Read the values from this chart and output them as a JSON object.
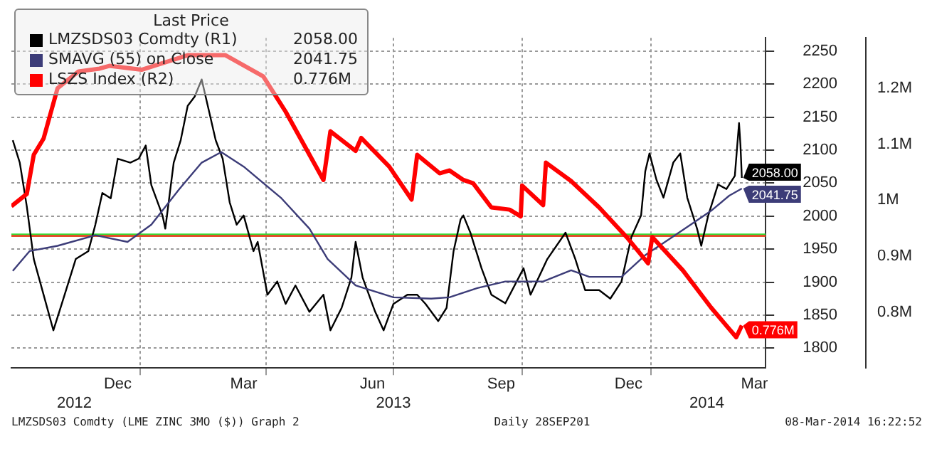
{
  "chart_data": {
    "type": "line",
    "legend_title": "Last Price",
    "legend": "top left",
    "grid": true,
    "marker": "none",
    "xlim": [
      "2012-10-01",
      "2014-03-24"
    ],
    "xticks": [
      {
        "value": "2012-12-16",
        "label": "Dec"
      },
      {
        "value": "2013-01-01",
        "label": null
      },
      {
        "value": "2013-03-16",
        "label": "Mar"
      },
      {
        "value": "2013-04-01",
        "label": null
      },
      {
        "value": "2013-06-16",
        "label": "Jun"
      },
      {
        "value": "2013-07-01",
        "label": null
      },
      {
        "value": "2013-09-16",
        "label": "Sep"
      },
      {
        "value": "2013-10-01",
        "label": null
      },
      {
        "value": "2013-12-16",
        "label": "Dec"
      },
      {
        "value": "2014-01-01",
        "label": null
      },
      {
        "value": "2014-03-16",
        "label": "Mar"
      }
    ],
    "x2lim": [
      "2012-10-01",
      "2014-03-24"
    ],
    "x2ticks": [
      {
        "value": "2012-11-15",
        "label": "2012"
      },
      {
        "value": "2013-07-01",
        "label": "2013"
      },
      {
        "value": "2014-02-10",
        "label": "2014"
      }
    ],
    "ylim": [
      1770,
      2270
    ],
    "yticks": [
      1800,
      1850,
      1900,
      1950,
      2000,
      2050,
      2100,
      2150,
      2200,
      2250
    ],
    "y2lim": [
      0.7,
      1.29
    ],
    "y2ticks": [
      {
        "value": 0.8,
        "label": "0.8M"
      },
      {
        "value": 0.9,
        "label": "0.9M"
      },
      {
        "value": 1,
        "label": "1M"
      },
      {
        "value": 1.1,
        "label": "1.1M"
      },
      {
        "value": 1.2,
        "label": "1.2M"
      }
    ],
    "ref_lines": [
      {
        "axis": "y",
        "value": 1972,
        "color": "#33dd33"
      },
      {
        "axis": "y",
        "value": 1970,
        "color": "#e0502a"
      }
    ],
    "annotations": [
      "LMZSDS03 Comdty (LME ZINC 3MO ($)) Graph 2",
      "Daily 28SEP201",
      "08-Mar-2014 16:22:52"
    ],
    "series": [
      {
        "name": "LSZS Index (R2)",
        "color": "#ff0000",
        "axis": "y2",
        "x": [
          "2012-10-01",
          "2012-10-12",
          "2012-10-17",
          "2012-10-24",
          "2012-11-03",
          "2012-11-18",
          "2012-12-03",
          "2012-12-10",
          "2013-01-02",
          "2013-02-04",
          "2013-03-03",
          "2013-03-30",
          "2013-04-15",
          "2013-05-12",
          "2013-05-17",
          "2013-06-04",
          "2013-06-08",
          "2013-06-28",
          "2013-07-14",
          "2013-07-18",
          "2013-08-03",
          "2013-08-10",
          "2013-08-20",
          "2013-08-27",
          "2013-09-09",
          "2013-09-22",
          "2013-09-30",
          "2013-10-01",
          "2013-10-16",
          "2013-10-18",
          "2013-11-05",
          "2013-11-25",
          "2013-12-15",
          "2013-12-30",
          "2014-01-02",
          "2014-01-24",
          "2014-02-13",
          "2014-03-03",
          "2014-03-07"
        ],
        "values": [
          0.989,
          1.011,
          1.081,
          1.11,
          1.2,
          1.23,
          1.235,
          1.24,
          1.233,
          1.259,
          1.259,
          1.221,
          1.158,
          1.036,
          1.123,
          1.088,
          1.111,
          1.06,
          1.001,
          1.081,
          1.048,
          1.053,
          1.036,
          1.03,
          0.987,
          0.983,
          0.971,
          1.026,
          0.991,
          1.067,
          1.034,
          0.987,
          0.933,
          0.887,
          0.934,
          0.874,
          0.808,
          0.755,
          0.776
        ],
        "value_labels": [
          null,
          null,
          null,
          null,
          null,
          null,
          null,
          null,
          null,
          null,
          null,
          null,
          null,
          null,
          null,
          null,
          null,
          null,
          null,
          null,
          null,
          null,
          null,
          null,
          null,
          null,
          null,
          null,
          null,
          null,
          null,
          null,
          null,
          null,
          null,
          null,
          null,
          null,
          "0.776M"
        ]
      },
      {
        "name": "SMAVG (55) on Close",
        "color": "#3c3c78",
        "x": [
          "2012-10-02",
          "2012-10-14",
          "2012-11-03",
          "2012-11-30",
          "2012-12-23",
          "2013-01-09",
          "2013-01-29",
          "2013-02-14",
          "2013-02-28",
          "2013-03-16",
          "2013-04-12",
          "2013-05-02",
          "2013-05-15",
          "2013-06-04",
          "2013-07-01",
          "2013-07-28",
          "2013-08-10",
          "2013-08-30",
          "2013-09-19",
          "2013-10-16",
          "2013-11-05",
          "2013-11-18",
          "2013-12-11",
          "2013-12-28",
          "2014-01-14",
          "2014-01-30",
          "2014-02-13",
          "2014-02-26",
          "2014-03-07"
        ],
        "values": [
          1917,
          1947,
          1955,
          1971,
          1961,
          1987,
          2041,
          2081,
          2097,
          2075,
          2027,
          1981,
          1935,
          1895,
          1877,
          1875,
          1877,
          1891,
          1901,
          1901,
          1918,
          1908,
          1908,
          1941,
          1965,
          1988,
          2008,
          2031,
          2041.75
        ],
        "value_labels": [
          null,
          null,
          null,
          null,
          null,
          null,
          null,
          null,
          null,
          null,
          null,
          null,
          null,
          null,
          null,
          null,
          null,
          null,
          null,
          null,
          null,
          null,
          null,
          null,
          null,
          null,
          null,
          null,
          "2041.75"
        ]
      },
      {
        "name": "LMZSDS03 Comdty (R1)",
        "color": "#000000",
        "x": [
          "2012-10-02",
          "2012-10-07",
          "2012-10-12",
          "2012-10-17",
          "2012-10-24",
          "2012-10-31",
          "2012-11-06",
          "2012-11-16",
          "2012-11-25",
          "2012-11-30",
          "2012-12-05",
          "2012-12-11",
          "2012-12-16",
          "2012-12-25",
          "2012-12-31",
          "2013-01-05",
          "2013-01-09",
          "2013-01-17",
          "2013-01-19",
          "2013-01-25",
          "2013-01-30",
          "2013-02-04",
          "2013-02-09",
          "2013-02-14",
          "2013-02-19",
          "2013-02-24",
          "2013-03-01",
          "2013-03-06",
          "2013-03-11",
          "2013-03-16",
          "2013-03-23",
          "2013-03-26",
          "2013-04-02",
          "2013-04-09",
          "2013-04-15",
          "2013-04-22",
          "2013-05-02",
          "2013-05-12",
          "2013-05-17",
          "2013-05-25",
          "2013-06-01",
          "2013-06-04",
          "2013-06-09",
          "2013-06-18",
          "2013-06-24",
          "2013-07-01",
          "2013-07-11",
          "2013-07-18",
          "2013-07-24",
          "2013-08-02",
          "2013-08-08",
          "2013-08-13",
          "2013-08-18",
          "2013-08-20",
          "2013-08-25",
          "2013-09-02",
          "2013-09-09",
          "2013-09-19",
          "2013-10-02",
          "2013-10-07",
          "2013-10-19",
          "2013-11-01",
          "2013-11-08",
          "2013-11-15",
          "2013-11-25",
          "2013-12-03",
          "2013-12-11",
          "2013-12-18",
          "2013-12-25",
          "2013-12-28",
          "2013-12-31",
          "2014-01-05",
          "2014-01-10",
          "2014-01-17",
          "2014-01-22",
          "2014-01-27",
          "2014-02-03",
          "2014-02-06",
          "2014-02-11",
          "2014-02-18",
          "2014-02-24",
          "2014-03-02",
          "2014-03-05",
          "2014-03-06",
          "2014-03-07"
        ],
        "values": [
          2115,
          2081,
          2015,
          1935,
          1881,
          1827,
          1867,
          1935,
          1947,
          1987,
          2035,
          2027,
          2087,
          2081,
          2087,
          2107,
          2047,
          2001,
          1981,
          2081,
          2115,
          2167,
          2181,
          2207,
          2161,
          2115,
          2087,
          2021,
          1987,
          2001,
          1947,
          1961,
          1881,
          1901,
          1867,
          1895,
          1855,
          1881,
          1827,
          1861,
          1907,
          1961,
          1907,
          1855,
          1827,
          1867,
          1881,
          1881,
          1867,
          1841,
          1861,
          1947,
          1995,
          2001,
          1975,
          1921,
          1881,
          1868,
          1921,
          1881,
          1935,
          1975,
          1935,
          1888,
          1888,
          1875,
          1901,
          1968,
          2001,
          2068,
          2095,
          2055,
          2028,
          2081,
          2095,
          2028,
          1981,
          1955,
          2001,
          2048,
          2041,
          2061,
          2141,
          2108,
          2058
        ],
        "value_labels": [
          null,
          null,
          null,
          null,
          null,
          null,
          null,
          null,
          null,
          null,
          null,
          null,
          null,
          null,
          null,
          null,
          null,
          null,
          null,
          null,
          null,
          null,
          null,
          null,
          null,
          null,
          null,
          null,
          null,
          null,
          null,
          null,
          null,
          null,
          null,
          null,
          null,
          null,
          null,
          null,
          null,
          null,
          null,
          null,
          null,
          null,
          null,
          null,
          null,
          null,
          null,
          null,
          null,
          null,
          null,
          null,
          null,
          null,
          null,
          null,
          null,
          null,
          null,
          null,
          null,
          null,
          null,
          null,
          null,
          null,
          null,
          null,
          null,
          null,
          null,
          null,
          null,
          null,
          null,
          null,
          null,
          null,
          null,
          null,
          "2058.00"
        ]
      }
    ]
  }
}
